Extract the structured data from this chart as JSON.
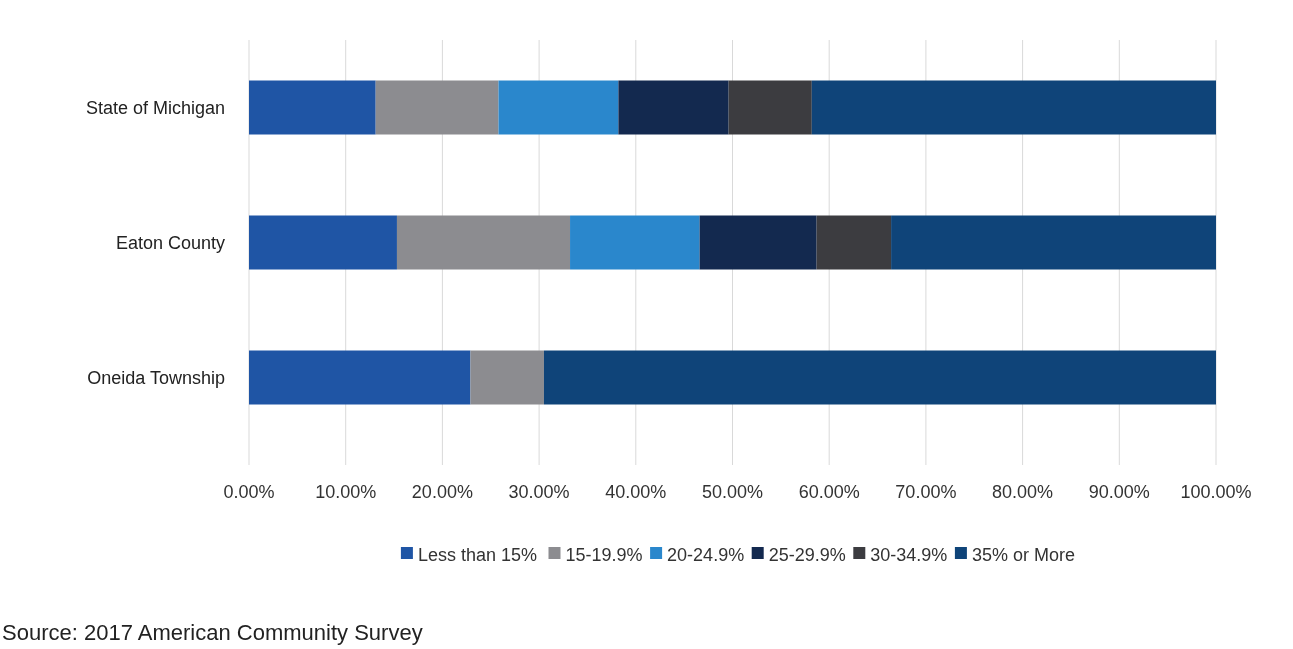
{
  "chart_data": {
    "type": "bar",
    "orientation": "horizontal",
    "stacked": true,
    "categories": [
      "State of Michigan",
      "Eaton County",
      "Oneida Township"
    ],
    "series": [
      {
        "name": "Less than 15%",
        "color": "#1f55a5",
        "values": [
          13.1,
          15.3,
          22.9
        ]
      },
      {
        "name": "15-19.9%",
        "color": "#8c8c90",
        "values": [
          12.7,
          17.9,
          7.6
        ]
      },
      {
        "name": "20-24.9%",
        "color": "#2a87cc",
        "values": [
          12.4,
          13.4,
          0
        ]
      },
      {
        "name": "25-29.9%",
        "color": "#13294f",
        "values": [
          11.4,
          12.1,
          0
        ]
      },
      {
        "name": "30-34.9%",
        "color": "#3c3c40",
        "values": [
          8.6,
          7.7,
          0
        ]
      },
      {
        "name": "35% or More",
        "color": "#0f4479",
        "values": [
          41.8,
          33.6,
          69.5
        ]
      }
    ],
    "xlim": [
      0,
      100
    ],
    "xticks": [
      {
        "value": 0,
        "label": "0.00%"
      },
      {
        "value": 10,
        "label": "10.00%"
      },
      {
        "value": 20,
        "label": "20.00%"
      },
      {
        "value": 30,
        "label": "30.00%"
      },
      {
        "value": 40,
        "label": "40.00%"
      },
      {
        "value": 50,
        "label": "50.00%"
      },
      {
        "value": 60,
        "label": "60.00%"
      },
      {
        "value": 70,
        "label": "70.00%"
      },
      {
        "value": 80,
        "label": "80.00%"
      },
      {
        "value": 90,
        "label": "90.00%"
      },
      {
        "value": 100,
        "label": "100.00%"
      }
    ],
    "grid": "x",
    "legend": "bottom",
    "annotations": [
      "Source: 2017 American Community Survey"
    ]
  }
}
